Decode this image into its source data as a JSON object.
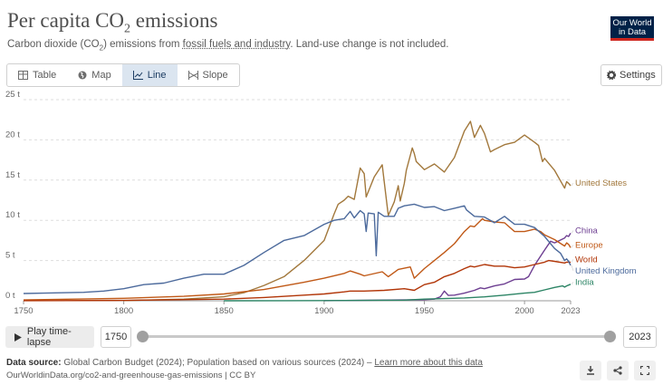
{
  "header": {
    "title_main": "Per capita CO",
    "title_sub": "2",
    "title_tail": " emissions",
    "subtitle_pre": "Carbon dioxide (CO",
    "subtitle_sub": "2",
    "subtitle_mid": ") emissions from ",
    "subtitle_link": "fossil fuels and industry",
    "subtitle_post": ". Land-use change is not included."
  },
  "logo": {
    "line1": "Our World",
    "line2": "in Data",
    "bg_color": "#002147",
    "accent_color": "#ce261e"
  },
  "tabs": [
    {
      "label": "Table",
      "icon": "table-icon",
      "active": false
    },
    {
      "label": "Map",
      "icon": "globe-icon",
      "active": false
    },
    {
      "label": "Line",
      "icon": "line-chart-icon",
      "active": true
    },
    {
      "label": "Slope",
      "icon": "slope-icon",
      "active": false
    }
  ],
  "settings_label": "Settings",
  "timeline": {
    "play_label": "Play time-lapse",
    "start_year": "1750",
    "end_year": "2023"
  },
  "footer": {
    "source_label": "Data source:",
    "source_text": " Global Carbon Budget (2024); Population based on various sources (2024) – ",
    "learn_more": "Learn more about this data",
    "url": "OurWorldinData.org/co2-and-greenhouse-gas-emissions | CC BY"
  },
  "chart_data": {
    "type": "line",
    "title": "Per capita CO₂ emissions",
    "ylim": [
      0,
      25
    ],
    "xlim": [
      1750,
      2023
    ],
    "y_ticks": [
      "0 t",
      "5 t",
      "10 t",
      "15 t",
      "20 t",
      "25 t"
    ],
    "y_tick_values": [
      0,
      5,
      10,
      15,
      20,
      25
    ],
    "x_ticks": [
      "1750",
      "1800",
      "1850",
      "1900",
      "1950",
      "2000",
      "2023"
    ],
    "x_tick_values": [
      1750,
      1800,
      1850,
      1900,
      1950,
      2000,
      2023
    ],
    "grid": true,
    "legend": "labels at line ends",
    "series": [
      {
        "name": "United States",
        "color": "#a2783c",
        "x": [
          1800,
          1830,
          1850,
          1860,
          1870,
          1880,
          1890,
          1900,
          1905,
          1907,
          1910,
          1912,
          1915,
          1918,
          1920,
          1921,
          1925,
          1929,
          1930,
          1932,
          1935,
          1937,
          1938,
          1940,
          1941,
          1944,
          1945,
          1946,
          1950,
          1955,
          1960,
          1965,
          1970,
          1973,
          1975,
          1978,
          1980,
          1983,
          1985,
          1990,
          1995,
          2000,
          2005,
          2007,
          2009,
          2010,
          2015,
          2020,
          2021,
          2022,
          2023
        ],
        "y": [
          0.02,
          0.2,
          0.5,
          1.0,
          1.9,
          3.0,
          5.0,
          7.5,
          10.8,
          12.0,
          12.5,
          13.0,
          12.6,
          16.5,
          15.8,
          12.9,
          15.4,
          16.9,
          14.8,
          10.6,
          12.3,
          14.3,
          12.4,
          14.6,
          16.2,
          19.0,
          18.3,
          17.3,
          16.3,
          17.0,
          16.0,
          17.8,
          21.1,
          22.3,
          20.3,
          21.8,
          20.8,
          18.5,
          18.8,
          19.4,
          19.7,
          20.6,
          19.7,
          19.3,
          17.3,
          17.7,
          16.2,
          14.0,
          14.8,
          14.6,
          14.3
        ]
      },
      {
        "name": "China",
        "color": "#6d3e91",
        "x": [
          1900,
          1950,
          1955,
          1958,
          1960,
          1962,
          1965,
          1970,
          1975,
          1978,
          1980,
          1985,
          1990,
          1995,
          2000,
          2002,
          2005,
          2010,
          2013,
          2015,
          2020,
          2021,
          2022,
          2023
        ],
        "y": [
          0.01,
          0.14,
          0.2,
          0.5,
          1.2,
          0.66,
          0.7,
          0.95,
          1.3,
          1.6,
          1.5,
          1.85,
          2.1,
          2.65,
          2.7,
          3.0,
          4.4,
          6.3,
          7.4,
          7.2,
          7.8,
          8.1,
          8.0,
          8.4
        ]
      },
      {
        "name": "Europe",
        "color": "#c05917",
        "x": [
          1750,
          1800,
          1830,
          1850,
          1870,
          1890,
          1900,
          1910,
          1913,
          1918,
          1920,
          1929,
          1932,
          1937,
          1943,
          1945,
          1950,
          1955,
          1960,
          1965,
          1970,
          1973,
          1975,
          1979,
          1980,
          1985,
          1990,
          1995,
          2000,
          2005,
          2008,
          2010,
          2015,
          2020,
          2021,
          2022,
          2023
        ],
        "y": [
          0.1,
          0.3,
          0.55,
          0.85,
          1.4,
          2.3,
          2.8,
          3.4,
          3.7,
          3.3,
          3.1,
          3.6,
          3.0,
          3.9,
          4.2,
          2.8,
          4.0,
          5.0,
          6.0,
          7.1,
          8.6,
          9.3,
          9.2,
          10.2,
          10.0,
          9.8,
          9.7,
          8.6,
          8.6,
          8.9,
          8.6,
          8.2,
          7.6,
          6.8,
          7.2,
          7.0,
          6.6
        ]
      },
      {
        "name": "World",
        "color": "#b13507",
        "x": [
          1750,
          1800,
          1850,
          1870,
          1890,
          1900,
          1910,
          1913,
          1920,
          1930,
          1940,
          1945,
          1950,
          1955,
          1960,
          1965,
          1970,
          1973,
          1975,
          1980,
          1985,
          1990,
          1995,
          2000,
          2005,
          2010,
          2012,
          2015,
          2020,
          2021,
          2022,
          2023
        ],
        "y": [
          0.01,
          0.05,
          0.2,
          0.4,
          0.7,
          0.85,
          1.1,
          1.2,
          1.2,
          1.3,
          1.5,
          1.3,
          2.0,
          2.3,
          3.0,
          3.4,
          4.0,
          4.3,
          4.2,
          4.5,
          4.3,
          4.3,
          4.1,
          4.2,
          4.5,
          4.8,
          5.0,
          4.9,
          4.7,
          4.8,
          4.8,
          4.8
        ]
      },
      {
        "name": "United Kingdom",
        "color": "#4c6a9c",
        "x": [
          1750,
          1760,
          1780,
          1790,
          1800,
          1810,
          1820,
          1830,
          1840,
          1850,
          1860,
          1870,
          1880,
          1890,
          1900,
          1905,
          1910,
          1913,
          1915,
          1918,
          1920,
          1921,
          1922,
          1925,
          1926,
          1927,
          1930,
          1935,
          1937,
          1940,
          1945,
          1950,
          1955,
          1960,
          1965,
          1970,
          1971,
          1975,
          1980,
          1985,
          1990,
          1995,
          2000,
          2005,
          2010,
          2015,
          2018,
          2020,
          2021,
          2022,
          2023
        ],
        "y": [
          0.9,
          0.95,
          1.05,
          1.2,
          1.5,
          2.0,
          2.2,
          2.8,
          3.3,
          3.3,
          4.4,
          6.0,
          7.5,
          8.1,
          9.5,
          10.0,
          10.2,
          11.1,
          10.3,
          11.2,
          10.8,
          8.6,
          10.9,
          10.8,
          5.6,
          11.0,
          10.5,
          10.5,
          11.5,
          11.8,
          12.0,
          11.6,
          11.7,
          11.2,
          11.5,
          11.8,
          11.3,
          10.5,
          10.4,
          9.7,
          10.5,
          9.5,
          9.5,
          9.1,
          8.0,
          6.5,
          5.9,
          5.0,
          5.2,
          4.9,
          4.4
        ]
      },
      {
        "name": "India",
        "color": "#2c8465",
        "x": [
          1850,
          1880,
          1900,
          1920,
          1940,
          1950,
          1960,
          1970,
          1980,
          1990,
          2000,
          2005,
          2010,
          2015,
          2019,
          2020,
          2021,
          2022,
          2023
        ],
        "y": [
          0.0,
          0.01,
          0.02,
          0.05,
          0.08,
          0.2,
          0.27,
          0.35,
          0.48,
          0.7,
          0.95,
          1.05,
          1.35,
          1.65,
          1.85,
          1.7,
          1.85,
          1.95,
          2.05
        ]
      }
    ]
  }
}
